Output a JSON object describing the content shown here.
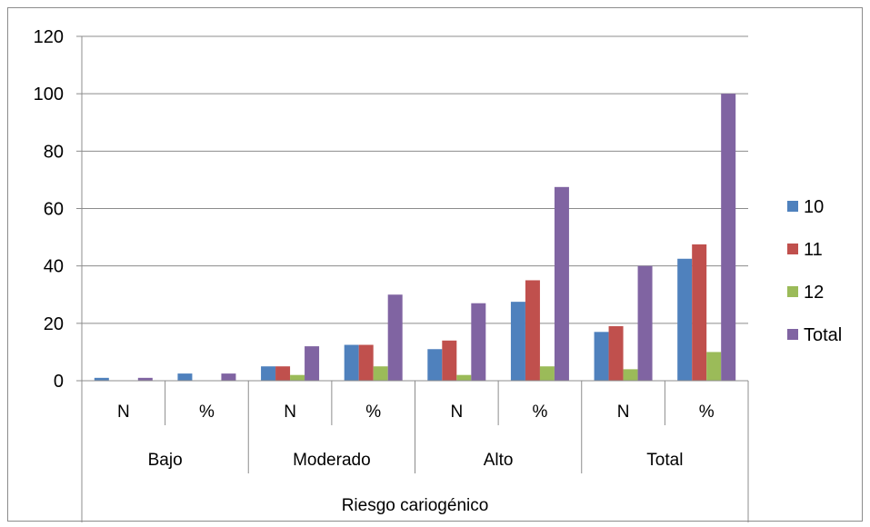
{
  "chart_data": {
    "type": "bar",
    "title": "",
    "xlabel": "Riesgo cariogénico",
    "ylabel": "",
    "ylim": [
      0,
      120
    ],
    "yticks": [
      0,
      20,
      40,
      60,
      80,
      100,
      120
    ],
    "grid": true,
    "legend_position": "right",
    "groups": [
      "Bajo",
      "Moderado",
      "Alto",
      "Total"
    ],
    "categories": [
      "N",
      "%",
      "N",
      "%",
      "N",
      "%",
      "N",
      "%"
    ],
    "series": [
      {
        "name": "10",
        "color": "#4f81bd",
        "values": [
          1,
          2.5,
          5,
          12.5,
          11,
          27.5,
          17,
          42.5
        ]
      },
      {
        "name": "11",
        "color": "#c0504d",
        "values": [
          0,
          0,
          5,
          12.5,
          14,
          35,
          19,
          47.5
        ]
      },
      {
        "name": "12",
        "color": "#9bbb59",
        "values": [
          0,
          0,
          2,
          5,
          2,
          5,
          4,
          10
        ]
      },
      {
        "name": "Total",
        "color": "#8064a2",
        "values": [
          1,
          2.5,
          12,
          30,
          27,
          67.5,
          40,
          100
        ]
      }
    ]
  }
}
